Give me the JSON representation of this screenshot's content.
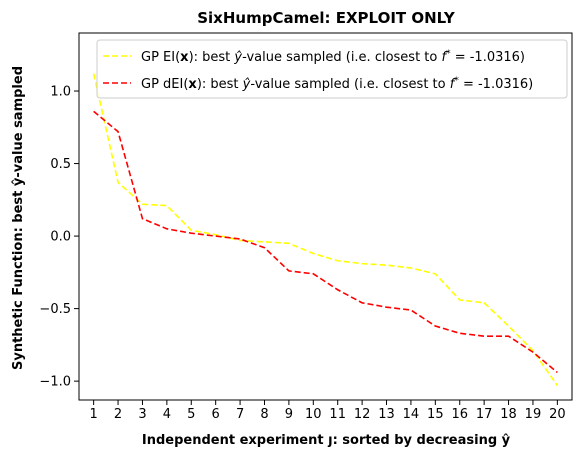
{
  "chart_data": {
    "type": "line",
    "title": "SixHumpCamel: EXPLOIT ONLY",
    "xlabel": "Independent experiment ȷ: sorted by decreasing ŷ",
    "ylabel": "Synthetic Function: best ŷ-value sampled",
    "xlim": [
      0.4,
      20.6
    ],
    "ylim": [
      -1.13,
      1.4
    ],
    "x": [
      1,
      2,
      3,
      4,
      5,
      6,
      7,
      8,
      9,
      10,
      11,
      12,
      13,
      14,
      15,
      16,
      17,
      18,
      19,
      20
    ],
    "xticks": [
      "1",
      "2",
      "3",
      "4",
      "5",
      "6",
      "7",
      "8",
      "9",
      "10",
      "11",
      "12",
      "13",
      "14",
      "15",
      "16",
      "17",
      "18",
      "19",
      "20"
    ],
    "yticks": [
      1.0,
      0.5,
      0.0,
      -0.5,
      -1.0
    ],
    "ytick_labels": [
      "1.0",
      "0.5",
      "0.0",
      "−0.5",
      "−1.0"
    ],
    "legend_position": "top-right",
    "series": [
      {
        "name": "GP EI(x):   best ŷ-value sampled (i.e. closest to f* = -1.0316)",
        "legend_parts": [
          "GP EI(",
          "x",
          "):   best ",
          "ŷ",
          "-value sampled (i.e. closest to ",
          "f",
          "*",
          " = -1.0316)"
        ],
        "color": "#ffff00",
        "values": [
          1.12,
          0.37,
          0.22,
          0.21,
          0.04,
          0.01,
          -0.03,
          -0.04,
          -0.05,
          -0.12,
          -0.17,
          -0.19,
          -0.2,
          -0.22,
          -0.26,
          -0.44,
          -0.46,
          -0.62,
          -0.79,
          -1.03
        ]
      },
      {
        "name": "GP dEI(x): best ŷ-value sampled (i.e. closest to f* = -1.0316)",
        "legend_parts": [
          "GP dEI(",
          "x",
          "): best ",
          "ŷ",
          "-value sampled (i.e. closest to ",
          "f",
          "*",
          " = -1.0316)"
        ],
        "color": "#ff0000",
        "values": [
          0.86,
          0.72,
          0.12,
          0.05,
          0.02,
          0.0,
          -0.02,
          -0.08,
          -0.24,
          -0.26,
          -0.37,
          -0.46,
          -0.49,
          -0.51,
          -0.62,
          -0.67,
          -0.69,
          -0.69,
          -0.8,
          -0.94
        ]
      }
    ]
  }
}
